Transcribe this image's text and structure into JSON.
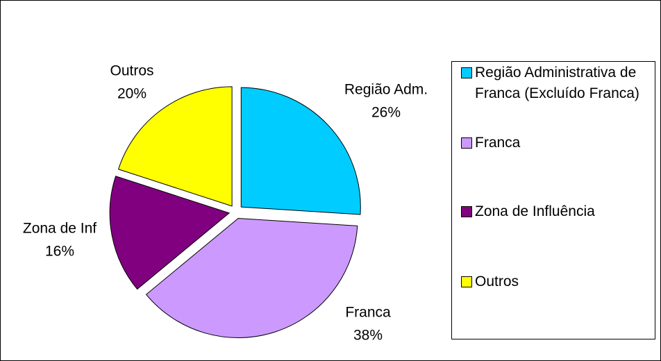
{
  "chart_data": {
    "type": "pie",
    "categories": [
      "Região Administrativa de Franca (Excluído Franca)",
      "Franca",
      "Zona de Influência",
      "Outros"
    ],
    "label_names": [
      "Região Adm.",
      "Franca",
      "Zona de Inf",
      "Outros"
    ],
    "values": [
      26,
      38,
      16,
      20
    ],
    "value_labels": [
      "26%",
      "38%",
      "16%",
      "20%"
    ],
    "colors": [
      "#00ccff",
      "#cc99ff",
      "#800080",
      "#ffff00"
    ],
    "legend": "right"
  }
}
